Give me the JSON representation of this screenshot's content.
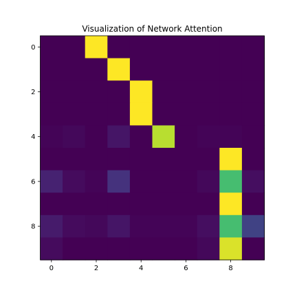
{
  "chart_data": {
    "type": "heatmap",
    "title": "Visualization of Network Attention",
    "xlabel": "",
    "ylabel": "",
    "colormap": "viridis",
    "color_range": [
      0,
      1
    ],
    "grid": false,
    "x_ticks": [
      0,
      2,
      4,
      6,
      8
    ],
    "y_ticks": [
      0,
      2,
      4,
      6,
      8
    ],
    "rows": [
      0,
      1,
      2,
      3,
      4,
      5,
      6,
      7,
      8,
      9
    ],
    "cols": [
      0,
      1,
      2,
      3,
      4,
      5,
      6,
      7,
      8,
      9
    ],
    "values": [
      [
        0.0,
        0.0,
        1.0,
        0.0,
        0.0,
        0.0,
        0.0,
        0.0,
        0.0,
        0.0
      ],
      [
        0.0,
        0.0,
        0.0,
        1.0,
        0.0,
        0.0,
        0.0,
        0.0,
        0.0,
        0.0
      ],
      [
        0.0,
        0.0,
        0.0,
        0.0,
        1.0,
        0.0,
        0.0,
        0.0,
        0.0,
        0.0
      ],
      [
        0.0,
        0.0,
        0.0,
        0.0,
        1.0,
        0.0,
        0.0,
        0.0,
        0.0,
        0.0
      ],
      [
        0.01,
        0.02,
        0.0,
        0.06,
        0.0,
        0.9,
        0.0,
        0.01,
        0.01,
        0.0
      ],
      [
        0.0,
        0.0,
        0.0,
        0.0,
        0.0,
        0.0,
        0.0,
        0.0,
        1.0,
        0.0
      ],
      [
        0.1,
        0.03,
        0.01,
        0.15,
        0.0,
        0.0,
        0.0,
        0.02,
        0.7,
        0.04
      ],
      [
        0.0,
        0.0,
        0.0,
        0.0,
        0.0,
        0.0,
        0.0,
        0.0,
        1.0,
        0.0
      ],
      [
        0.08,
        0.03,
        0.02,
        0.06,
        0.01,
        0.01,
        0.01,
        0.04,
        0.7,
        0.2
      ],
      [
        0.03,
        0.0,
        0.0,
        0.0,
        0.0,
        0.0,
        0.0,
        0.02,
        0.95,
        0.0
      ]
    ]
  }
}
